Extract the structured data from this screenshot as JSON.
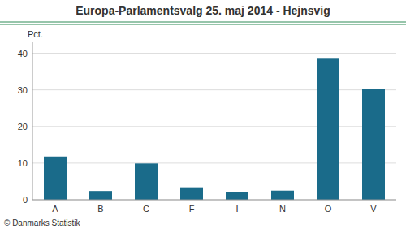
{
  "chart_data": {
    "type": "bar",
    "title": "Europa-Parlamentsvalg 25. maj 2014 - Hejnsvig",
    "ylabel": "Pct.",
    "categories": [
      "A",
      "B",
      "C",
      "F",
      "I",
      "N",
      "O",
      "V"
    ],
    "values": [
      11.8,
      2.4,
      9.9,
      3.4,
      2.1,
      2.5,
      38.5,
      30.3
    ],
    "color": "#1a6b8a",
    "ylim": [
      0,
      43
    ],
    "yticks": [
      0,
      10,
      20,
      30,
      40
    ],
    "grid": true,
    "annotations": [
      "© Danmarks Statistik"
    ]
  }
}
